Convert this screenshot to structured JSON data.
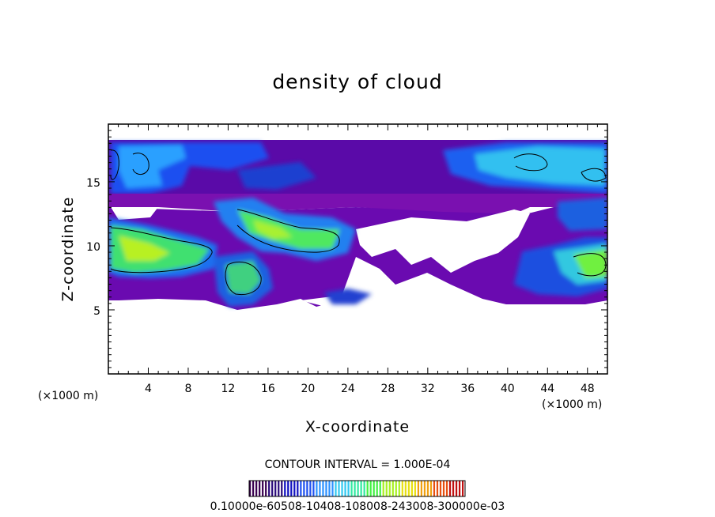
{
  "chart_data": {
    "type": "heatmap",
    "title": "density of cloud",
    "xlabel": "X-coordinate",
    "ylabel": "Z-coordinate",
    "x_unit": "(×1000 m)",
    "y_unit": "(×1000 m)",
    "xlim": [
      0,
      50
    ],
    "ylim": [
      0,
      19.5
    ],
    "x_ticks": [
      4,
      8,
      12,
      16,
      20,
      24,
      28,
      32,
      36,
      40,
      44,
      48
    ],
    "y_ticks": [
      5,
      10,
      15
    ],
    "contour_interval_text": "CONTOUR INTERVAL = 1.000E-04",
    "colorbar_labels_text": "0.10000e-60508-10408-108008-243008-300000e-03",
    "colorbar_colors": [
      "#3a0050",
      "#2a0a7a",
      "#1010c0",
      "#1e50f0",
      "#2a90ff",
      "#30c8f0",
      "#30e8a0",
      "#40f040",
      "#a8f020",
      "#e8e010",
      "#f0a010",
      "#e85010",
      "#c01010"
    ],
    "regions": [
      {
        "name": "upper-band",
        "x": [
          0,
          50
        ],
        "z": [
          14.2,
          18.6
        ],
        "level": 0.25
      },
      {
        "name": "upper-left-cyan",
        "x": [
          0.5,
          14
        ],
        "z": [
          14.5,
          18.3
        ],
        "level": 0.45
      },
      {
        "name": "upper-right-cyan",
        "x": [
          38,
          50
        ],
        "z": [
          14.5,
          18.3
        ],
        "level": 0.45
      },
      {
        "name": "mid-band",
        "x": [
          0,
          50
        ],
        "z": [
          12.0,
          14.5
        ],
        "level": 0.15
      },
      {
        "name": "left-core",
        "x": [
          0,
          10
        ],
        "z": [
          7.5,
          12.5
        ],
        "level": 0.75
      },
      {
        "name": "center-left-core",
        "x": [
          12,
          24
        ],
        "z": [
          9.5,
          13.0
        ],
        "level": 0.7
      },
      {
        "name": "lower-left-lobe",
        "x": [
          10,
          17
        ],
        "z": [
          5.5,
          10.5
        ],
        "level": 0.6
      },
      {
        "name": "right-core",
        "x": [
          44,
          50
        ],
        "z": [
          7.5,
          11.0
        ],
        "level": 0.7
      },
      {
        "name": "lower-band",
        "x": [
          0,
          50
        ],
        "z": [
          5.5,
          9.5
        ],
        "level": 0.1
      }
    ]
  }
}
